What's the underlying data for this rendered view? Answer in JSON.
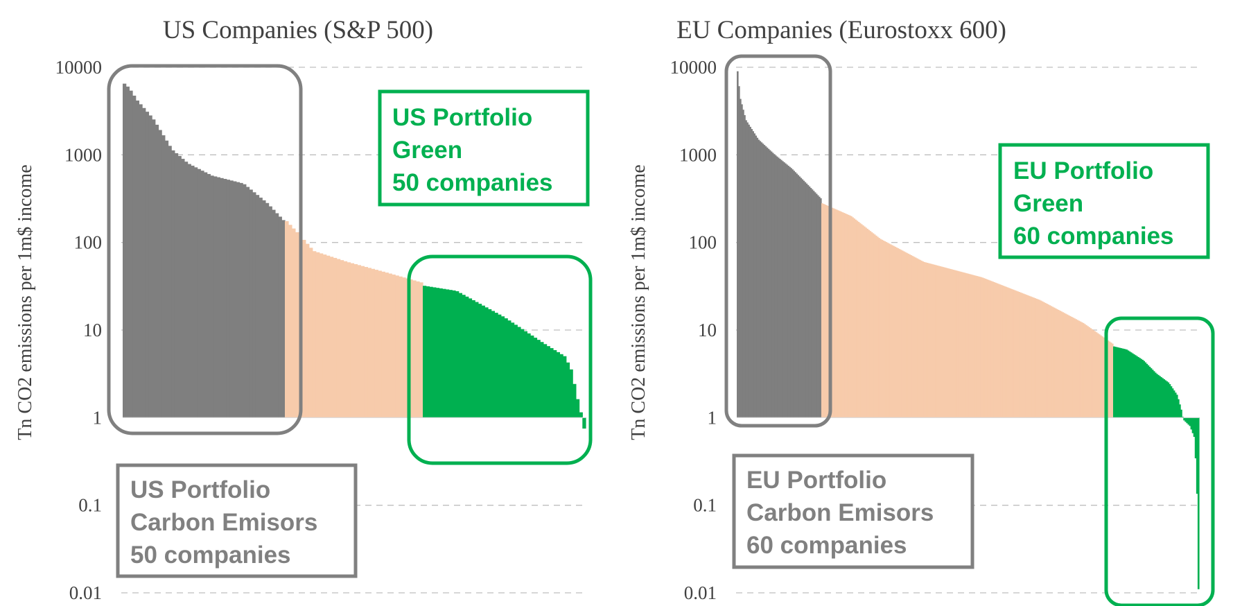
{
  "colors": {
    "high_emitter": "#7f7f7f",
    "mid": "#f7cbab",
    "green": "#00b050",
    "box_gray": "#808080",
    "grid": "#bfbfbf",
    "text": "#404040"
  },
  "chart_data": [
    {
      "type": "bar",
      "scale": "log",
      "title": "US Companies (S&P 500)",
      "ylabel": "Tn CO2 emissions per 1m$ income",
      "xlabel": "",
      "ylim": [
        0.01,
        10000
      ],
      "yticks": [
        10000,
        1000,
        100,
        10,
        1,
        0.1,
        0.01
      ],
      "ytick_labels": [
        "10000",
        "1000",
        "100",
        "10",
        "1",
        "0.1",
        "0.01"
      ],
      "grid": true,
      "segments": [
        {
          "name": "carbon-emitters",
          "role": "high",
          "count": 50,
          "start": 6500,
          "end": 180,
          "knots": [
            [
              0,
              6500
            ],
            [
              0.03,
              5800
            ],
            [
              0.08,
              4200
            ],
            [
              0.18,
              2600
            ],
            [
              0.3,
              1150
            ],
            [
              0.4,
              800
            ],
            [
              0.55,
              580
            ],
            [
              0.75,
              470
            ],
            [
              0.9,
              280
            ],
            [
              1,
              180
            ]
          ]
        },
        {
          "name": "middle",
          "role": "mid",
          "count": 40,
          "start": 175,
          "end": 35,
          "knots": [
            [
              0,
              175
            ],
            [
              0.1,
              120
            ],
            [
              0.2,
              80
            ],
            [
              0.45,
              60
            ],
            [
              0.75,
              45
            ],
            [
              1,
              35
            ]
          ]
        },
        {
          "name": "green",
          "role": "green",
          "count": 50,
          "start": 32,
          "end": 0.75,
          "knots": [
            [
              0,
              32
            ],
            [
              0.2,
              28
            ],
            [
              0.5,
              14
            ],
            [
              0.75,
              7
            ],
            [
              0.88,
              5
            ],
            [
              0.92,
              3.5
            ],
            [
              0.96,
              1.6
            ],
            [
              0.985,
              1.05
            ],
            [
              1,
              0.75
            ]
          ]
        }
      ],
      "annotations": [
        {
          "role": "green",
          "lines": [
            "US Portfolio",
            "Green",
            "50 companies"
          ]
        },
        {
          "role": "gray",
          "lines": [
            "US Portfolio",
            "Carbon Emisors",
            "50 companies"
          ]
        }
      ]
    },
    {
      "type": "bar",
      "scale": "log",
      "title": "EU Companies (Eurostoxx 600)",
      "ylabel": "Tn CO2 emissions per 1m$ income",
      "xlabel": "",
      "ylim": [
        0.01,
        10000
      ],
      "yticks": [
        10000,
        1000,
        100,
        10,
        1,
        0.1,
        0.01
      ],
      "ytick_labels": [
        "10000",
        "1000",
        "100",
        "10",
        "1",
        "0.1",
        "0.01"
      ],
      "grid": true,
      "segments": [
        {
          "name": "carbon-emitters",
          "role": "high",
          "count": 60,
          "start": 9000,
          "end": 320,
          "knots": [
            [
              0,
              9000
            ],
            [
              0.03,
              4500
            ],
            [
              0.1,
              2500
            ],
            [
              0.25,
              1500
            ],
            [
              0.45,
              1000
            ],
            [
              0.65,
              700
            ],
            [
              0.85,
              450
            ],
            [
              1,
              320
            ]
          ]
        },
        {
          "name": "middle",
          "role": "mid",
          "count": 200,
          "start": 280,
          "end": 7,
          "knots": [
            [
              0,
              280
            ],
            [
              0.1,
              200
            ],
            [
              0.2,
              110
            ],
            [
              0.35,
              60
            ],
            [
              0.55,
              40
            ],
            [
              0.75,
              22
            ],
            [
              0.9,
              12
            ],
            [
              1,
              7
            ]
          ]
        },
        {
          "name": "green",
          "role": "green",
          "count": 60,
          "start": 6.5,
          "end": 0.011,
          "knots": [
            [
              0,
              6.5
            ],
            [
              0.15,
              6
            ],
            [
              0.35,
              4.5
            ],
            [
              0.5,
              3.2
            ],
            [
              0.65,
              2.5
            ],
            [
              0.75,
              1.8
            ],
            [
              0.8,
              1.2
            ],
            [
              0.82,
              0.95
            ],
            [
              0.9,
              0.8
            ],
            [
              0.95,
              0.6
            ],
            [
              0.97,
              0.3
            ],
            [
              0.985,
              0.12
            ],
            [
              1,
              0.011
            ]
          ]
        }
      ],
      "annotations": [
        {
          "role": "green",
          "lines": [
            "EU Portfolio",
            "Green",
            "60 companies"
          ]
        },
        {
          "role": "gray",
          "lines": [
            "EU Portfolio",
            "Carbon Emisors",
            "60 companies"
          ]
        }
      ]
    }
  ]
}
